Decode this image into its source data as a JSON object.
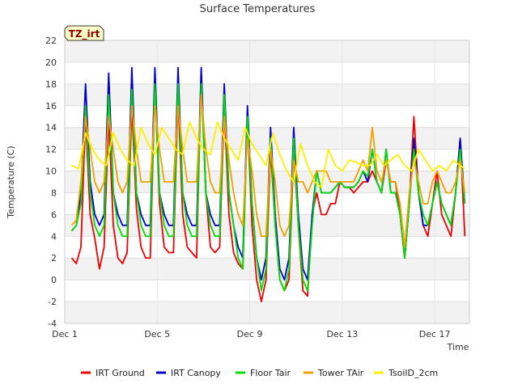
{
  "chart_data": {
    "type": "line",
    "title": "Surface Temperatures",
    "xlabel": "Time",
    "ylabel": "Temperature (C)",
    "ylim": [
      -4,
      22
    ],
    "xlim": [
      0,
      17.5
    ],
    "yticks": [
      -4,
      -2,
      0,
      2,
      4,
      6,
      8,
      10,
      12,
      14,
      16,
      18,
      20,
      22
    ],
    "xticks": [
      {
        "x": 0,
        "label": "Dec 1"
      },
      {
        "x": 4,
        "label": "Dec 5"
      },
      {
        "x": 8,
        "label": "Dec 9"
      },
      {
        "x": 12,
        "label": "Dec 13"
      },
      {
        "x": 16,
        "label": "Dec 17"
      }
    ],
    "badge": "TZ_irt",
    "grid": true,
    "legend_position": "bottom",
    "series": [
      {
        "name": "IRT Ground",
        "color": "#ee0000",
        "x": [
          0.3,
          0.5,
          0.7,
          0.9,
          1.1,
          1.3,
          1.5,
          1.7,
          1.9,
          2.1,
          2.3,
          2.5,
          2.7,
          2.9,
          3.1,
          3.3,
          3.5,
          3.7,
          3.9,
          4.1,
          4.3,
          4.5,
          4.7,
          4.9,
          5.1,
          5.3,
          5.5,
          5.7,
          5.9,
          6.1,
          6.3,
          6.5,
          6.7,
          6.9,
          7.1,
          7.3,
          7.5,
          7.7,
          7.9,
          8.1,
          8.3,
          8.5,
          8.7,
          8.9,
          9.1,
          9.3,
          9.5,
          9.7,
          9.9,
          10.1,
          10.3,
          10.5,
          10.7,
          10.9,
          11.1,
          11.3,
          11.5,
          11.7,
          11.9,
          12.1,
          12.3,
          12.5,
          12.7,
          12.9,
          13.1,
          13.3,
          13.5,
          13.7,
          13.9,
          14.1,
          14.3,
          14.5,
          14.7,
          14.9,
          15.1,
          15.3,
          15.5,
          15.7,
          15.9,
          16.1,
          16.3,
          16.5,
          16.7,
          16.9,
          17.1,
          17.3
        ],
        "y": [
          2,
          1.5,
          3,
          15,
          6,
          3.8,
          1,
          3,
          15,
          5,
          2,
          1.5,
          2.5,
          16,
          6.5,
          3,
          2,
          2,
          18,
          7,
          3,
          2.5,
          2.5,
          17,
          6,
          3,
          2.5,
          2,
          19,
          8,
          3,
          2.5,
          3,
          16,
          6,
          2.5,
          1.5,
          1,
          15,
          5,
          0,
          -2,
          0,
          12,
          5,
          0,
          -1,
          0,
          12,
          5,
          -1,
          -1.5,
          6,
          8,
          6,
          6,
          7,
          7,
          9,
          8.5,
          8.5,
          8,
          8.5,
          9,
          9,
          10,
          9,
          8,
          11,
          9,
          9,
          6,
          2,
          7,
          15,
          8,
          5,
          4,
          7,
          10,
          6,
          5,
          4,
          8,
          13,
          4
        ]
      },
      {
        "name": "IRT Canopy",
        "color": "#0000cc",
        "x": [
          0.3,
          0.5,
          0.7,
          0.9,
          1.1,
          1.3,
          1.5,
          1.7,
          1.9,
          2.1,
          2.3,
          2.5,
          2.7,
          2.9,
          3.1,
          3.3,
          3.5,
          3.7,
          3.9,
          4.1,
          4.3,
          4.5,
          4.7,
          4.9,
          5.1,
          5.3,
          5.5,
          5.7,
          5.9,
          6.1,
          6.3,
          6.5,
          6.7,
          6.9,
          7.1,
          7.3,
          7.5,
          7.7,
          7.9,
          8.1,
          8.3,
          8.5,
          8.7,
          8.9,
          9.1,
          9.3,
          9.5,
          9.7,
          9.9,
          10.1,
          10.3,
          10.5,
          10.7,
          10.9,
          11.1,
          11.3,
          11.5,
          11.7,
          11.9,
          12.1,
          12.3,
          12.5,
          12.7,
          12.9,
          13.1,
          13.3,
          13.5,
          13.7,
          13.9,
          14.1,
          14.3,
          14.5,
          14.7,
          14.9,
          15.1,
          15.3,
          15.5,
          15.7,
          15.9,
          16.1,
          16.3,
          16.5,
          16.7,
          16.9,
          17.1,
          17.3
        ],
        "y": [
          4.5,
          5,
          8,
          18,
          9,
          6,
          5,
          6,
          19,
          8,
          6,
          5,
          5,
          19.5,
          8,
          6,
          5,
          5,
          19.5,
          8,
          6,
          5,
          5,
          19.5,
          8,
          6,
          5,
          5,
          19.5,
          8,
          6,
          5,
          5,
          18,
          8,
          5,
          3,
          2,
          16,
          7,
          2,
          0,
          2,
          14,
          6,
          1,
          0,
          2,
          14,
          6,
          1,
          0,
          6,
          10,
          8,
          8,
          8,
          8.5,
          9,
          8.5,
          8.5,
          8.5,
          9,
          10,
          9,
          12,
          9,
          8,
          12,
          8,
          8,
          6,
          2,
          7,
          13,
          8,
          5,
          5,
          7,
          9,
          7,
          6,
          5,
          8,
          13,
          7
        ]
      },
      {
        "name": "Floor Tair",
        "color": "#00dd00",
        "x": [
          0.3,
          0.5,
          0.7,
          0.9,
          1.1,
          1.3,
          1.5,
          1.7,
          1.9,
          2.1,
          2.3,
          2.5,
          2.7,
          2.9,
          3.1,
          3.3,
          3.5,
          3.7,
          3.9,
          4.1,
          4.3,
          4.5,
          4.7,
          4.9,
          5.1,
          5.3,
          5.5,
          5.7,
          5.9,
          6.1,
          6.3,
          6.5,
          6.7,
          6.9,
          7.1,
          7.3,
          7.5,
          7.7,
          7.9,
          8.1,
          8.3,
          8.5,
          8.7,
          8.9,
          9.1,
          9.3,
          9.5,
          9.7,
          9.9,
          10.1,
          10.3,
          10.5,
          10.7,
          10.9,
          11.1,
          11.3,
          11.5,
          11.7,
          11.9,
          12.1,
          12.3,
          12.5,
          12.7,
          12.9,
          13.1,
          13.3,
          13.5,
          13.7,
          13.9,
          14.1,
          14.3,
          14.5,
          14.7,
          14.9,
          15.1,
          15.3,
          15.5,
          15.7,
          15.9,
          16.1,
          16.3,
          16.5,
          16.7,
          16.9,
          17.1,
          17.3
        ],
        "y": [
          4.5,
          5,
          7,
          16,
          8,
          5,
          4,
          5,
          17,
          8,
          5,
          4,
          4,
          17.5,
          8,
          5,
          4,
          4,
          18,
          8,
          5,
          4,
          4,
          18,
          8,
          5,
          4,
          4,
          18,
          8,
          5,
          4,
          4,
          17,
          8,
          5,
          2,
          1,
          15,
          7,
          2,
          -1,
          1,
          13,
          5,
          0,
          -1,
          1,
          13,
          5,
          0,
          -1,
          5,
          10,
          8,
          8,
          8,
          8.5,
          9,
          8.5,
          8.5,
          8.5,
          9,
          10,
          9.5,
          12,
          9,
          8,
          12,
          8,
          8,
          6,
          2,
          7,
          12,
          8,
          6,
          5,
          7,
          9,
          7,
          6,
          5,
          8,
          12,
          7
        ]
      },
      {
        "name": "Tower TAir",
        "color": "#f0a000",
        "x": [
          0.3,
          0.5,
          0.7,
          0.9,
          1.1,
          1.3,
          1.5,
          1.7,
          1.9,
          2.1,
          2.3,
          2.5,
          2.7,
          2.9,
          3.1,
          3.3,
          3.5,
          3.7,
          3.9,
          4.1,
          4.3,
          4.5,
          4.7,
          4.9,
          5.1,
          5.3,
          5.5,
          5.7,
          5.9,
          6.1,
          6.3,
          6.5,
          6.7,
          6.9,
          7.1,
          7.3,
          7.5,
          7.7,
          7.9,
          8.1,
          8.3,
          8.5,
          8.7,
          8.9,
          9.1,
          9.3,
          9.5,
          9.7,
          9.9,
          10.1,
          10.3,
          10.5,
          10.7,
          10.9,
          11.1,
          11.3,
          11.5,
          11.7,
          11.9,
          12.1,
          12.3,
          12.5,
          12.7,
          12.9,
          13.1,
          13.3,
          13.5,
          13.7,
          13.9,
          14.1,
          14.3,
          14.5,
          14.7,
          14.9,
          15.1,
          15.3,
          15.5,
          15.7,
          15.9,
          16.1,
          16.3,
          16.5,
          16.7,
          16.9,
          17.1,
          17.3
        ],
        "y": [
          5,
          5.5,
          9,
          15,
          12,
          9,
          8,
          9,
          15,
          12,
          9,
          8,
          9,
          16,
          12,
          9,
          9,
          9,
          16,
          12,
          9,
          9,
          9,
          16,
          12,
          9,
          9,
          9,
          17,
          12,
          9,
          8,
          8,
          15,
          11,
          8,
          6,
          5,
          13,
          10,
          6,
          4,
          4,
          12,
          9,
          5,
          4,
          5,
          11,
          9,
          9,
          8,
          9,
          10,
          10,
          10,
          9,
          9,
          9,
          9,
          9,
          9,
          10,
          11,
          10,
          14,
          10,
          9,
          11,
          9,
          9,
          7,
          3,
          8,
          11,
          9,
          7,
          7,
          9,
          10,
          9,
          8,
          8,
          9,
          11,
          8
        ]
      },
      {
        "name": "TsoilD_2cm",
        "color": "#ffee00",
        "x": [
          0.3,
          0.6,
          0.9,
          1.2,
          1.5,
          1.8,
          2.1,
          2.4,
          2.7,
          3.0,
          3.3,
          3.6,
          3.9,
          4.2,
          4.5,
          4.8,
          5.1,
          5.4,
          5.7,
          6.0,
          6.3,
          6.6,
          6.9,
          7.2,
          7.5,
          7.8,
          8.1,
          8.4,
          8.7,
          9.0,
          9.3,
          9.6,
          9.9,
          10.2,
          10.5,
          10.8,
          11.1,
          11.4,
          11.7,
          12.0,
          12.3,
          12.6,
          12.9,
          13.2,
          13.5,
          13.8,
          14.1,
          14.4,
          14.7,
          15.0,
          15.3,
          15.6,
          15.9,
          16.2,
          16.5,
          16.8,
          17.1,
          17.3
        ],
        "y": [
          10.5,
          10.2,
          13.5,
          12,
          11,
          10.5,
          13.5,
          12,
          11,
          10.5,
          14,
          12.5,
          11.5,
          14,
          13,
          12,
          11.5,
          14.5,
          13,
          12,
          11.5,
          14.5,
          13,
          12,
          11,
          14,
          12.5,
          11.5,
          10.5,
          13.5,
          11.5,
          10,
          9,
          12.5,
          10.5,
          9,
          8.5,
          12,
          10.5,
          10,
          11,
          10.8,
          10.5,
          10.5,
          11.5,
          10.5,
          11,
          11.5,
          10.5,
          10,
          12,
          11,
          10,
          10.5,
          10,
          11,
          10.5,
          10.2
        ]
      }
    ]
  }
}
